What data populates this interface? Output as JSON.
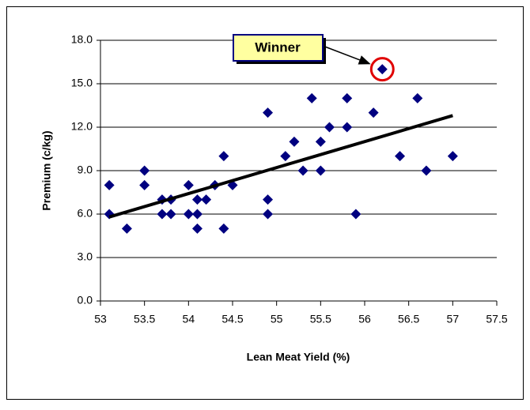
{
  "chart_data": {
    "type": "scatter",
    "xlabel": "Lean Meat Yield (%)",
    "ylabel": "Premium (c/kg)",
    "annotation": "Winner",
    "color": "#000080",
    "trendline_color": "#000000",
    "x": [
      53.1,
      53.1,
      53.3,
      53.5,
      53.5,
      53.7,
      53.7,
      53.8,
      53.8,
      54.0,
      54.0,
      54.1,
      54.1,
      54.1,
      54.2,
      54.3,
      54.4,
      54.4,
      54.5,
      54.9,
      54.9,
      54.9,
      55.1,
      55.2,
      55.3,
      55.4,
      55.5,
      55.5,
      55.6,
      55.8,
      55.8,
      55.9,
      56.1,
      56.2,
      56.4,
      56.6,
      56.7,
      57.0
    ],
    "values": [
      8,
      6,
      5,
      9,
      8,
      7,
      6,
      7,
      6,
      8,
      6,
      7,
      6,
      5,
      7,
      8,
      10,
      5,
      8,
      13,
      7,
      6,
      10,
      11,
      9,
      14,
      11,
      9,
      12,
      14,
      12,
      6,
      13,
      16,
      10,
      14,
      9,
      10
    ],
    "trendline": {
      "x": [
        53.1,
        57.0
      ],
      "values": [
        5.8,
        12.8
      ]
    },
    "xlim": [
      53,
      57.5
    ],
    "xticks": [
      53,
      53.5,
      54,
      54.5,
      55,
      55.5,
      56,
      56.5,
      57,
      57.5
    ],
    "ylim": [
      0,
      18
    ],
    "yticks": [
      {
        "value": 0,
        "label": "0.0"
      },
      {
        "value": 3,
        "label": "3.0"
      },
      {
        "value": 6,
        "label": "6.0"
      },
      {
        "value": 9,
        "label": "9.0"
      },
      {
        "value": 12,
        "label": "12.0"
      },
      {
        "value": 15,
        "label": "15.0"
      },
      {
        "value": 18,
        "label": "18.0"
      }
    ],
    "grid": true
  }
}
